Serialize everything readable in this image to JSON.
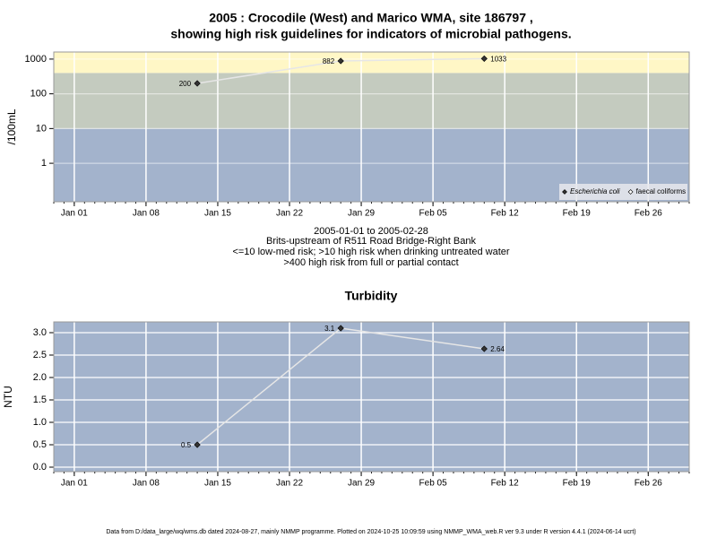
{
  "chart_data": [
    {
      "type": "line",
      "title": [
        "2005 : Crocodile (West) and Marico WMA, site 186797 ,",
        "showing high risk guidelines for indicators of microbial pathogens."
      ],
      "ylabel": "/100mL",
      "caption": [
        "2005-01-01 to 2005-02-28",
        "Brits-upstream of R511 Road Bridge-Right Bank",
        "<=10 low-med risk; >10 high risk when drinking untreated water",
        ">400 high risk from full or partial contact"
      ],
      "x": [
        "2005-01-13",
        "2005-01-27",
        "2005-02-10"
      ],
      "xlim": [
        "2004-12-30",
        "2005-03-02"
      ],
      "xticks": [
        {
          "value": "2005-01-01",
          "label": "Jan 01"
        },
        {
          "value": "2005-01-08",
          "label": "Jan 08"
        },
        {
          "value": "2005-01-15",
          "label": "Jan 15"
        },
        {
          "value": "2005-01-22",
          "label": "Jan 22"
        },
        {
          "value": "2005-01-29",
          "label": "Jan 29"
        },
        {
          "value": "2005-02-05",
          "label": "Feb 05"
        },
        {
          "value": "2005-02-12",
          "label": "Feb 12"
        },
        {
          "value": "2005-02-19",
          "label": "Feb 19"
        },
        {
          "value": "2005-02-26",
          "label": "Feb 26"
        }
      ],
      "yscale": "log",
      "ylim": [
        0.078,
        1600
      ],
      "yticks": [
        1,
        10,
        100,
        1000
      ],
      "thresholds": [
        10,
        400
      ],
      "band_colors": [
        "#a3b3cc",
        "#c4cbbf",
        "#fff7c6"
      ],
      "grid": true,
      "legend": "bottom-right",
      "line_color": "#e6e6e6",
      "series": [
        {
          "name": "Escherichia coli",
          "color": "#333333",
          "values": [
            200,
            882,
            1033
          ]
        },
        {
          "name": "faecal coliforms",
          "color": "#ffffff",
          "values": [
            null,
            null,
            null
          ]
        }
      ]
    },
    {
      "type": "line",
      "title": "Turbidity",
      "ylabel": "NTU",
      "x": [
        "2005-01-13",
        "2005-01-27",
        "2005-02-10"
      ],
      "xlim": [
        "2004-12-30",
        "2005-03-02"
      ],
      "xticks": [
        {
          "value": "2005-01-01",
          "label": "Jan 01"
        },
        {
          "value": "2005-01-08",
          "label": "Jan 08"
        },
        {
          "value": "2005-01-15",
          "label": "Jan 15"
        },
        {
          "value": "2005-01-22",
          "label": "Jan 22"
        },
        {
          "value": "2005-01-29",
          "label": "Jan 29"
        },
        {
          "value": "2005-02-05",
          "label": "Feb 05"
        },
        {
          "value": "2005-02-12",
          "label": "Feb 12"
        },
        {
          "value": "2005-02-19",
          "label": "Feb 19"
        },
        {
          "value": "2005-02-26",
          "label": "Feb 26"
        }
      ],
      "ylim": [
        -0.1,
        3.24
      ],
      "yticks": [
        {
          "value": 0,
          "label": "0.0"
        },
        0.5,
        {
          "value": 1,
          "label": "1.0"
        },
        1.5,
        {
          "value": 2,
          "label": "2.0"
        },
        2.5,
        {
          "value": 3,
          "label": "3.0"
        }
      ],
      "band_colors": [
        "#a3b3cc"
      ],
      "grid": true,
      "line_color": "#e6e6e6",
      "series": [
        {
          "name": "Turbidity",
          "color": "#333333",
          "values": [
            0.5,
            3.1,
            2.64
          ]
        }
      ]
    }
  ],
  "footer": "Data from D:/data_large/wq/wms.db dated 2024-08-27, mainly NMMP programme. Plotted on 2024-10-25 10:09:59 using NMMP_WMA_web.R ver 9.3 under R version 4.4.1 (2024-06-14 ucrt)"
}
